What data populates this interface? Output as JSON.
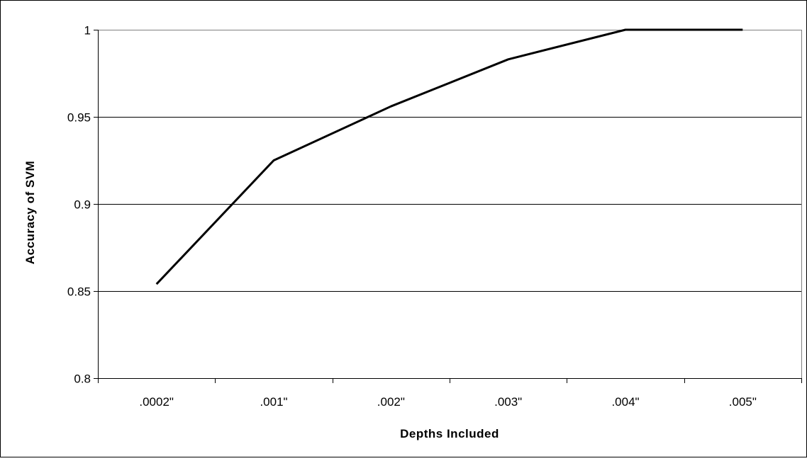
{
  "chart_data": {
    "type": "line",
    "title": "",
    "xlabel": "Depths Included",
    "ylabel": "Accuracy of SVM",
    "categories": [
      ".0002\"",
      ".001\"",
      ".002\"",
      ".003\"",
      ".004\"",
      ".005\""
    ],
    "series": [
      {
        "values": [
          0.854,
          0.925,
          0.956,
          0.983,
          1.0,
          1.0
        ]
      }
    ],
    "ylim": [
      0.8,
      1.0
    ],
    "yticks": [
      0.8,
      0.85,
      0.9,
      0.95,
      1
    ],
    "ytick_labels": [
      "0.8",
      "0.85",
      "0.9",
      "0.95",
      "1"
    ],
    "grid": "horizontal",
    "legend": "none",
    "colors": {
      "line": "#000000",
      "grid": "#000000",
      "plot_background": "#ffffff",
      "frame": "#000000"
    }
  }
}
